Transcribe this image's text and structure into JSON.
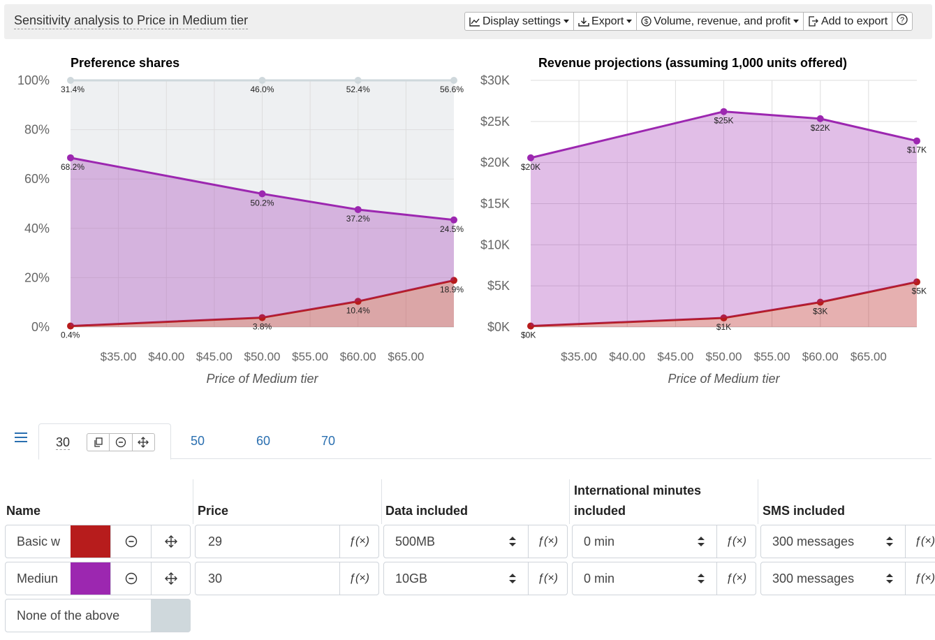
{
  "header": {
    "title": "Sensitivity analysis to Price in Medium tier",
    "buttons": {
      "display_settings": "Display settings",
      "export": "Export",
      "volume": "Volume, revenue, and profit",
      "add_to_export": "Add to export"
    }
  },
  "chart_data": [
    {
      "type": "area",
      "title": "Preference shares",
      "xlabel": "Price of Medium tier",
      "ylabel": "",
      "x": [
        30,
        50,
        60,
        70
      ],
      "xlim": [
        30,
        70
      ],
      "ylim": [
        0,
        100
      ],
      "x_ticks": [
        "$35.00",
        "$40.00",
        "$45.00",
        "$50.00",
        "$55.00",
        "$60.00",
        "$65.00"
      ],
      "y_ticks": [
        "0%",
        "20%",
        "40%",
        "60%",
        "80%",
        "100%"
      ],
      "stacked": true,
      "series": [
        {
          "name": "Basic w",
          "color": "#b71c1c",
          "values": [
            0.4,
            3.8,
            10.4,
            18.9
          ],
          "labels": [
            "0.4%",
            "3.8%",
            "10.4%",
            "18.9%"
          ]
        },
        {
          "name": "Mediun",
          "color": "#9c27b0",
          "values": [
            68.2,
            50.2,
            37.2,
            24.5
          ],
          "labels": [
            "68.2%",
            "50.2%",
            "37.2%",
            "24.5%"
          ]
        },
        {
          "name": "None of the above",
          "color": "#cfd8dc",
          "values": [
            31.4,
            46.0,
            52.4,
            56.6
          ],
          "labels": [
            "31.4%",
            "46.0%",
            "52.4%",
            "56.6%"
          ]
        }
      ],
      "grid": true
    },
    {
      "type": "area",
      "title": "Revenue projections (assuming 1,000 units offered)",
      "xlabel": "Price of Medium tier",
      "ylabel": "",
      "x": [
        30,
        50,
        60,
        70
      ],
      "xlim": [
        30,
        70
      ],
      "ylim": [
        0,
        30000
      ],
      "x_ticks": [
        "$35.00",
        "$40.00",
        "$45.00",
        "$50.00",
        "$55.00",
        "$60.00",
        "$65.00"
      ],
      "y_ticks": [
        "$0K",
        "$5K",
        "$10K",
        "$15K",
        "$20K",
        "$25K",
        "$30K"
      ],
      "stacked": true,
      "series": [
        {
          "name": "Basic w",
          "color": "#b71c1c",
          "values": [
            116,
            1102,
            3016,
            5481
          ],
          "labels": [
            "$0K",
            "$1K",
            "$3K",
            "$5K"
          ]
        },
        {
          "name": "Mediun",
          "color": "#9c27b0",
          "values": [
            20460,
            25100,
            22320,
            17150
          ],
          "labels": [
            "$20K",
            "$25K",
            "$22K",
            "$17K"
          ]
        }
      ],
      "grid": true
    }
  ],
  "tabs": {
    "active_label": "30",
    "others": [
      "50",
      "60",
      "70"
    ]
  },
  "table": {
    "headers": {
      "name": "Name",
      "price": "Price",
      "data": "Data included",
      "intl_line1": "International minutes",
      "intl_line2": "included",
      "sms": "SMS included"
    },
    "fx_label": "ƒ(×)",
    "rows": [
      {
        "name": "Basic w",
        "color": "#b71c1c",
        "price": "29",
        "data": "500MB",
        "intl": "0 min",
        "sms": "300 messages"
      },
      {
        "name": "Mediun",
        "color": "#9c27b0",
        "price": "30",
        "data": "10GB",
        "intl": "0 min",
        "sms": "300 messages"
      }
    ],
    "none_row": {
      "name": "None of the above",
      "color": "#cfd8dc"
    }
  }
}
